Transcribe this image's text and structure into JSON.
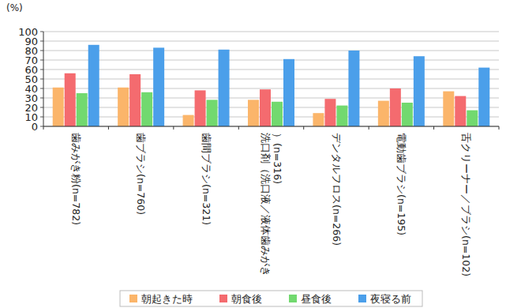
{
  "chart_data": {
    "type": "bar",
    "y_label": "(%)",
    "categories": [
      "歯みがき粉(n=782)",
      "歯ブラシ(n=760)",
      "歯間ブラシ(n=321)",
      "洗口剤（洗口液／液体歯みがき）(n=316)",
      "デンタルフロス(n=266)",
      "電動歯ブラシ(n=195)",
      "舌クリーナー／ブラシ(n=102)"
    ],
    "series": [
      {
        "name": "朝起きた時",
        "color": "#fbb56a",
        "values": [
          41,
          41,
          12,
          28,
          14,
          27,
          37
        ]
      },
      {
        "name": "朝食後",
        "color": "#f46b6f",
        "values": [
          56,
          55,
          38,
          39,
          29,
          40,
          32
        ]
      },
      {
        "name": "昼食後",
        "color": "#72d96f",
        "values": [
          35,
          36,
          28,
          26,
          22,
          25,
          17
        ]
      },
      {
        "name": "夜寝る前",
        "color": "#4b9fea",
        "values": [
          86,
          83,
          81,
          71,
          80,
          74,
          62
        ]
      }
    ],
    "ylim": [
      0,
      100
    ],
    "yticks": [
      0,
      10,
      20,
      30,
      40,
      50,
      60,
      70,
      80,
      90,
      100
    ],
    "grid": true,
    "legend": "bottom"
  }
}
